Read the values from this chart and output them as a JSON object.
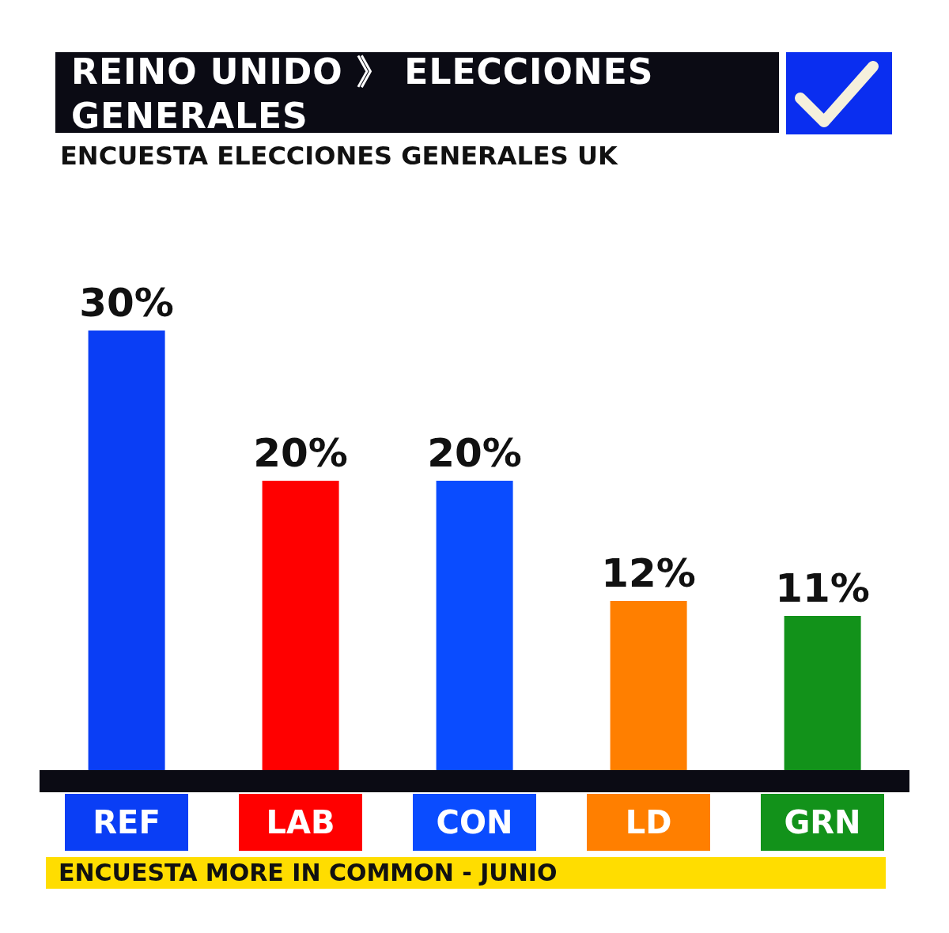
{
  "chart_data": {
    "type": "bar",
    "title": "REINO UNIDO 》 ELECCIONES GENERALES",
    "subtitle": "ENCUESTA ELECCIONES GENERALES UK",
    "categories": [
      "REF",
      "LAB",
      "CON",
      "LD",
      "GRN"
    ],
    "values": [
      30,
      20,
      20,
      12,
      11
    ],
    "colors": [
      "#0a3ef5",
      "#ff0000",
      "#0a4cff",
      "#ff7f00",
      "#12921a"
    ],
    "value_labels": [
      "30%",
      "20%",
      "20%",
      "12%",
      "11%"
    ],
    "annotations": [
      "ENCUESTA MORE IN COMMON - JUNIO"
    ]
  }
}
